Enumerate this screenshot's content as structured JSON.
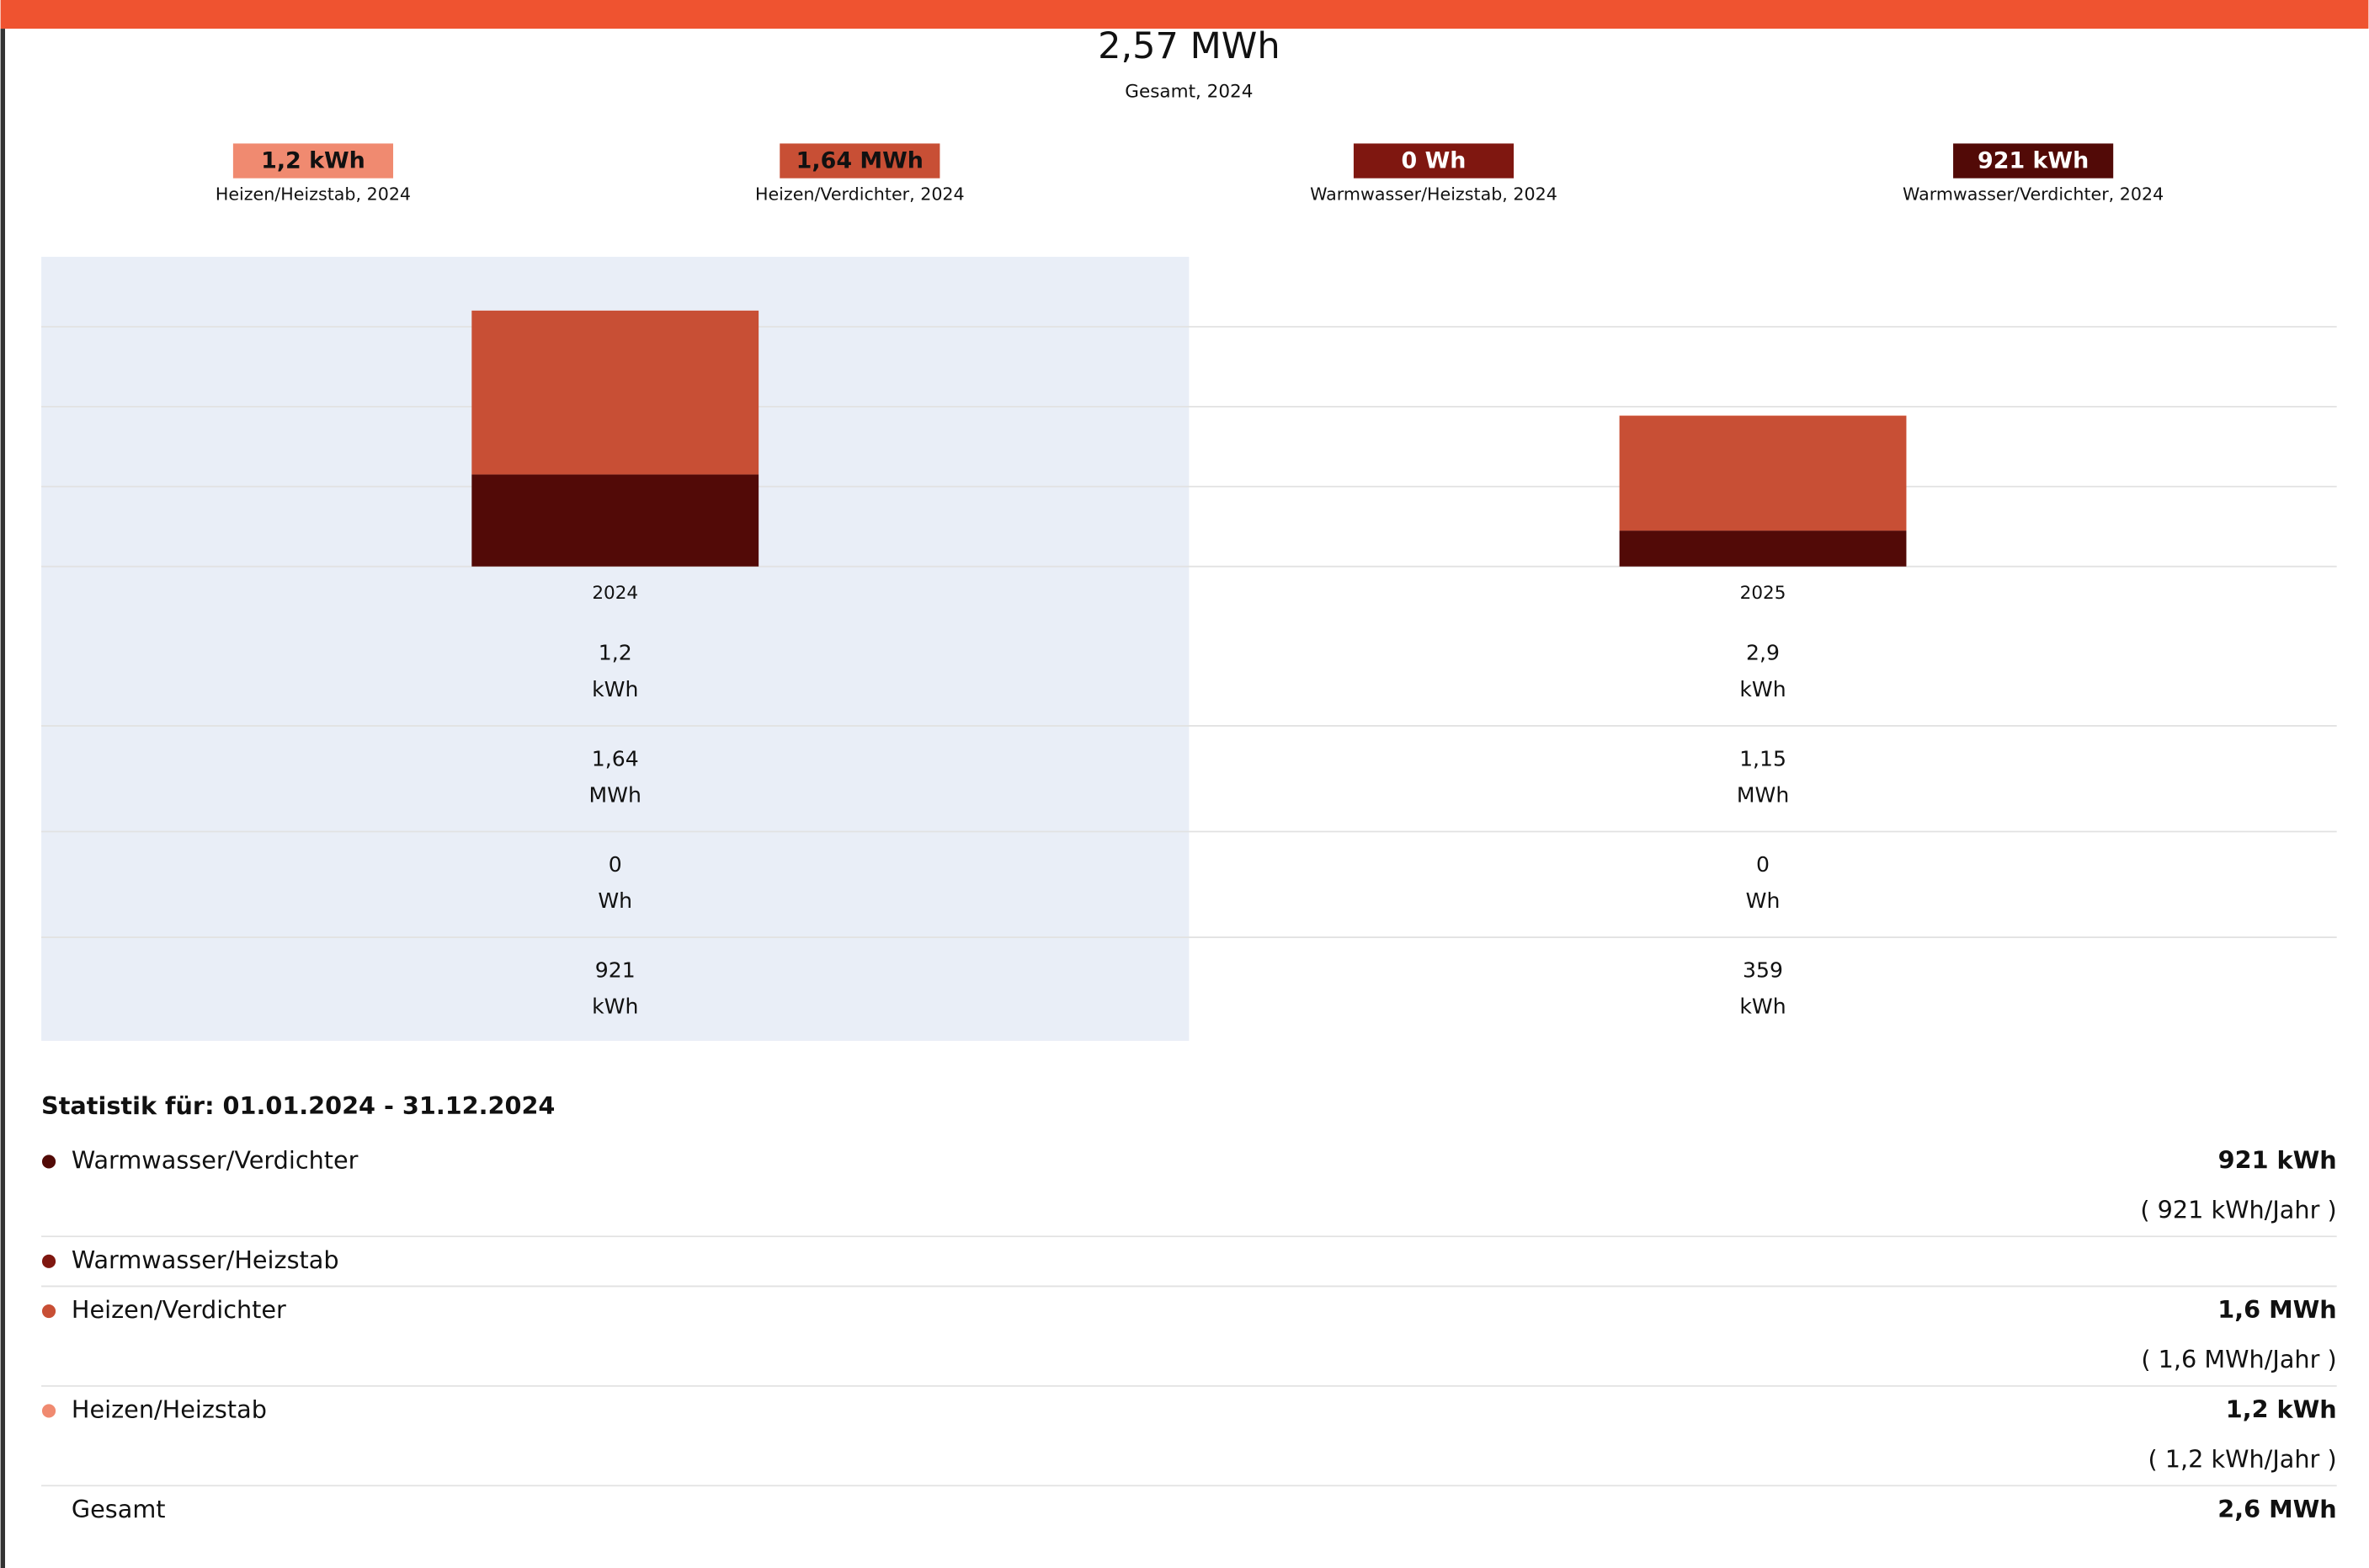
{
  "header": {
    "total": "2,57 MWh",
    "caption": "Gesamt, 2024"
  },
  "summary": [
    {
      "value": "1,2 kWh",
      "caption": "Heizen/Heizstab, 2024"
    },
    {
      "value": "1,64 MWh",
      "caption": "Heizen/Verdichter, 2024"
    },
    {
      "value": "0 Wh",
      "caption": "Warmwasser/Heizstab, 2024"
    },
    {
      "value": "921 kWh",
      "caption": "Warmwasser/Verdichter, 2024"
    }
  ],
  "chart_data": {
    "type": "bar",
    "stacked": true,
    "categories": [
      "2024",
      "2025"
    ],
    "ylim": [
      0,
      3100
    ],
    "yticks": [
      0,
      800,
      1600,
      2400
    ],
    "grid": true,
    "series": [
      {
        "color": "#f08a70",
        "values": [
          1.2,
          2.9
        ],
        "value_labels": [
          "1,2\nkWh",
          "2,9\nkWh"
        ]
      },
      {
        "color": "#c84f35",
        "values": [
          1640,
          1150
        ],
        "value_labels": [
          "1,64\nMWh",
          "1,15\nMWh"
        ]
      },
      {
        "color": "#7f1710",
        "values": [
          0,
          0
        ],
        "value_labels": [
          "0\nWh",
          "0\nWh"
        ]
      },
      {
        "color": "#520a07",
        "values": [
          921,
          359
        ],
        "value_labels": [
          "921\nkWh",
          "359\nkWh"
        ]
      }
    ]
  },
  "statistics": {
    "title": "Statistik für: 01.01.2024 - 31.12.2024",
    "items": [
      {
        "name": "Warmwasser/Verdichter",
        "color": "#520a07",
        "value": "921 kWh",
        "per_year": "( 921 kWh/Jahr )"
      },
      {
        "name": "Warmwasser/Heizstab",
        "color": "#7f1710"
      },
      {
        "name": "Heizen/Verdichter",
        "color": "#c84f35",
        "value": "1,6 MWh",
        "per_year": "( 1,6 MWh/Jahr )"
      },
      {
        "name": "Heizen/Heizstab",
        "color": "#f08a70",
        "value": "1,2 kWh",
        "per_year": "( 1,2 kWh/Jahr )"
      }
    ],
    "total": {
      "name": "Gesamt",
      "value": "2,6 MWh"
    }
  }
}
